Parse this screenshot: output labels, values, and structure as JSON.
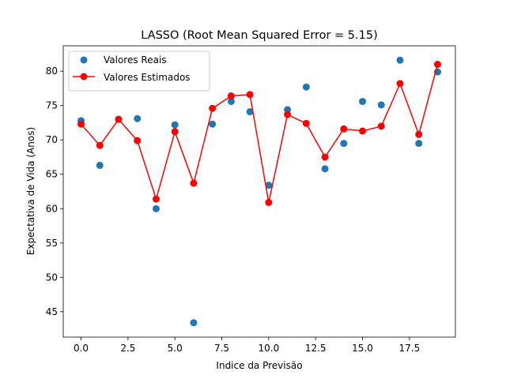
{
  "chart_data": {
    "type": "scatter",
    "title": "LASSO (Root Mean Squared Error = 5.15)",
    "xlabel": "Indice da Previsão",
    "ylabel": "Expectativa de Vida (Anos)",
    "xlim": [
      -0.95,
      19.95
    ],
    "ylim": [
      41.3,
      83.7
    ],
    "xticks": [
      0.0,
      2.5,
      5.0,
      7.5,
      10.0,
      12.5,
      15.0,
      17.5
    ],
    "xtick_labels": [
      "0.0",
      "2.5",
      "5.0",
      "7.5",
      "10.0",
      "12.5",
      "15.0",
      "17.5"
    ],
    "yticks": [
      45,
      50,
      55,
      60,
      65,
      70,
      75,
      80
    ],
    "ytick_labels": [
      "45",
      "50",
      "55",
      "60",
      "65",
      "70",
      "75",
      "80"
    ],
    "grid": false,
    "legend": "top-left",
    "colors": {
      "real": "#1f77b4",
      "estimated": "#ff0000"
    },
    "x": [
      0,
      1,
      2,
      3,
      4,
      5,
      6,
      7,
      8,
      9,
      10,
      11,
      12,
      13,
      14,
      15,
      16,
      17,
      18,
      19
    ],
    "series": [
      {
        "name": "Valores Reais",
        "kind": "scatter",
        "values": [
          72.8,
          66.3,
          73.0,
          73.1,
          60.0,
          72.2,
          43.4,
          72.3,
          75.6,
          74.1,
          63.4,
          74.4,
          77.7,
          65.8,
          69.5,
          75.6,
          75.1,
          81.6,
          69.5,
          79.9
        ]
      },
      {
        "name": "Valores Estimados",
        "kind": "line",
        "values": [
          72.3,
          69.2,
          73.0,
          69.9,
          61.4,
          71.2,
          63.7,
          74.6,
          76.4,
          76.6,
          60.9,
          73.7,
          72.4,
          67.5,
          71.6,
          71.3,
          72.0,
          78.2,
          70.8,
          81.0
        ]
      }
    ]
  }
}
